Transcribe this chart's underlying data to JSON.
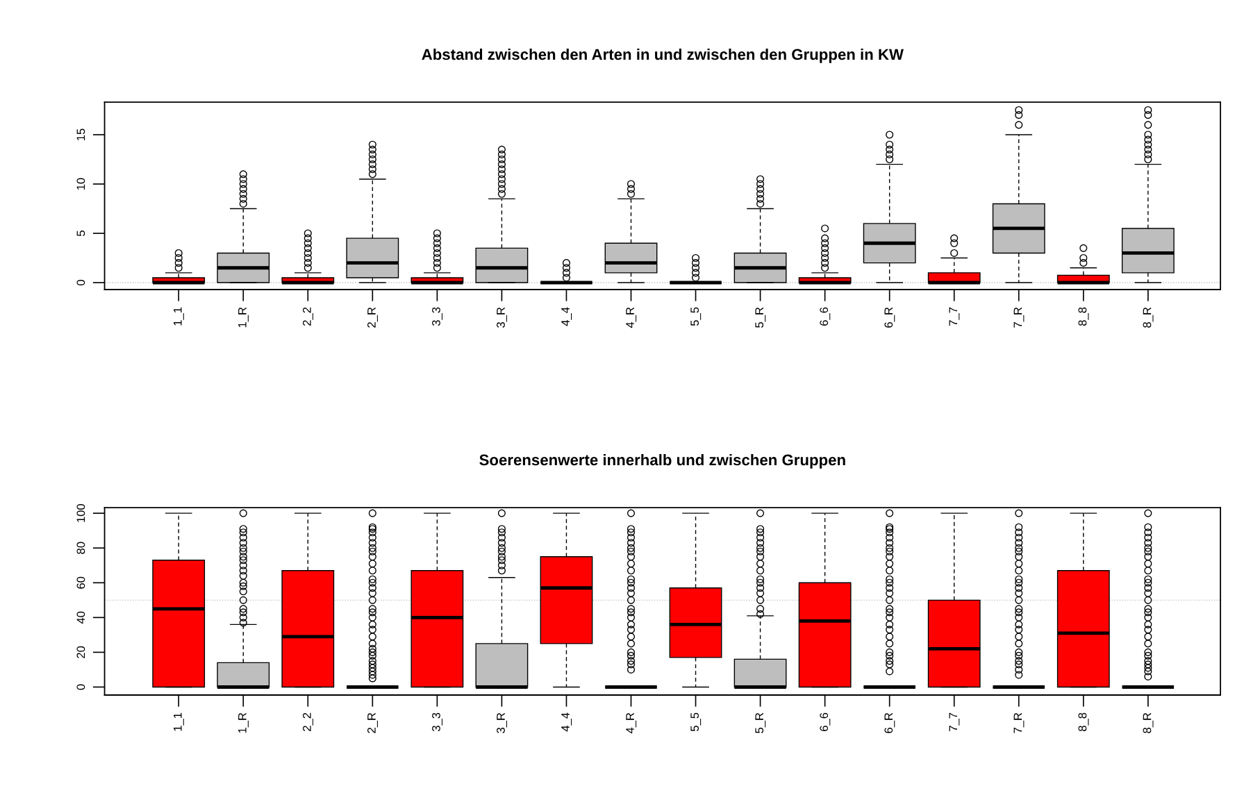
{
  "chart_data": [
    {
      "type": "box",
      "title": "Abstand zwischen den Arten in und zwischen den Gruppen in KW",
      "categories": [
        "1_1",
        "1_R",
        "2_2",
        "2_R",
        "3_3",
        "3_R",
        "4_4",
        "4_R",
        "5_5",
        "5_R",
        "6_6",
        "6_R",
        "7_7",
        "7_R",
        "8_8",
        "8_R"
      ],
      "colors": [
        "#ff0000",
        "#bebebe",
        "#ff0000",
        "#bebebe",
        "#ff0000",
        "#bebebe",
        null,
        "#bebebe",
        null,
        "#bebebe",
        "#ff0000",
        "#bebebe",
        "#ff0000",
        "#bebebe",
        "#ff0000",
        "#bebebe"
      ],
      "boxes": [
        {
          "low": 0,
          "q1": 0,
          "median": 0,
          "q3": 0.5,
          "high": 1,
          "outliers": [
            1.5,
            2,
            2.5,
            3
          ]
        },
        {
          "low": 0,
          "q1": 0,
          "median": 1.5,
          "q3": 3,
          "high": 7.5,
          "outliers": [
            8,
            8.5,
            9,
            9.5,
            10,
            10.5,
            11
          ]
        },
        {
          "low": 0,
          "q1": 0,
          "median": 0,
          "q3": 0.5,
          "high": 1,
          "outliers": [
            1.5,
            2,
            2.5,
            3,
            3.5,
            4,
            4.5,
            5
          ]
        },
        {
          "low": 0,
          "q1": 0.5,
          "median": 2,
          "q3": 4.5,
          "high": 10.5,
          "outliers": [
            11,
            11.5,
            12,
            12.5,
            13,
            13.5,
            14
          ]
        },
        {
          "low": 0,
          "q1": 0,
          "median": 0,
          "q3": 0.5,
          "high": 1,
          "outliers": [
            1.5,
            2,
            2.5,
            3,
            3.5,
            4,
            4.5,
            5
          ]
        },
        {
          "low": 0,
          "q1": 0,
          "median": 1.5,
          "q3": 3.5,
          "high": 8.5,
          "outliers": [
            9,
            9.5,
            10,
            10.5,
            11,
            11.5,
            12,
            12.5,
            13,
            13.5
          ]
        },
        {
          "low": 0,
          "q1": 0,
          "median": 0,
          "q3": 0,
          "high": 0,
          "outliers": [
            0.5,
            1,
            1.5,
            2
          ]
        },
        {
          "low": 0,
          "q1": 1,
          "median": 2,
          "q3": 4,
          "high": 8.5,
          "outliers": [
            9,
            9.5,
            10
          ]
        },
        {
          "low": 0,
          "q1": 0,
          "median": 0,
          "q3": 0,
          "high": 0,
          "outliers": [
            0.5,
            1,
            1.5,
            2,
            2.5
          ]
        },
        {
          "low": 0,
          "q1": 0,
          "median": 1.5,
          "q3": 3,
          "high": 7.5,
          "outliers": [
            8,
            8.5,
            9,
            9.5,
            10,
            10.5
          ]
        },
        {
          "low": 0,
          "q1": 0,
          "median": 0,
          "q3": 0.5,
          "high": 1,
          "outliers": [
            1.5,
            2,
            2.5,
            3,
            3.5,
            4,
            4.5,
            5.5
          ]
        },
        {
          "low": 0,
          "q1": 2,
          "median": 4,
          "q3": 6,
          "high": 12,
          "outliers": [
            12.5,
            13,
            13.5,
            14,
            15
          ]
        },
        {
          "low": 0,
          "q1": 0,
          "median": 0,
          "q3": 1,
          "high": 2.5,
          "outliers": [
            3,
            4,
            4.5
          ]
        },
        {
          "low": 0,
          "q1": 3,
          "median": 5.5,
          "q3": 8,
          "high": 15,
          "outliers": [
            16,
            17,
            17.5
          ]
        },
        {
          "low": 0,
          "q1": 0,
          "median": 0,
          "q3": 0.75,
          "high": 1.5,
          "outliers": [
            2,
            2.5,
            3.5
          ]
        },
        {
          "low": 0,
          "q1": 1,
          "median": 3,
          "q3": 5.5,
          "high": 12,
          "outliers": [
            12.5,
            13,
            13.5,
            14,
            14.5,
            15,
            16,
            17,
            17.5
          ]
        }
      ],
      "ylim": [
        -0.7,
        18.3
      ],
      "yticks": [
        0,
        5,
        10,
        15
      ],
      "ref_lines": [
        {
          "axis": "y",
          "value": 0,
          "color": "#bebebe",
          "line_style": "dotted"
        }
      ]
    },
    {
      "type": "box",
      "title": "Soerensenwerte innerhalb und zwischen Gruppen",
      "categories": [
        "1_1",
        "1_R",
        "2_2",
        "2_R",
        "3_3",
        "3_R",
        "4_4",
        "4_R",
        "5_5",
        "5_R",
        "6_6",
        "6_R",
        "7_7",
        "7_R",
        "8_8",
        "8_R"
      ],
      "colors": [
        "#ff0000",
        "#bebebe",
        "#ff0000",
        null,
        "#ff0000",
        "#bebebe",
        "#ff0000",
        null,
        "#ff0000",
        "#bebebe",
        "#ff0000",
        null,
        "#ff0000",
        null,
        "#ff0000",
        null
      ],
      "boxes": [
        {
          "low": 0,
          "q1": 0,
          "median": 45,
          "q3": 73,
          "high": 100
        },
        {
          "low": 0,
          "q1": 0,
          "median": 0,
          "q3": 14,
          "high": 36,
          "outliers": [
            37,
            40,
            43,
            45,
            50,
            55,
            58,
            60,
            64,
            67,
            70,
            73,
            75,
            78,
            80,
            83,
            86,
            89,
            91,
            100
          ]
        },
        {
          "low": 0,
          "q1": 0,
          "median": 29,
          "q3": 67,
          "high": 100
        },
        {
          "low": 0,
          "q1": 0,
          "median": 0,
          "q3": 0,
          "high": 0,
          "outliers": [
            5,
            7,
            9,
            11,
            13,
            15,
            18,
            20,
            22,
            25,
            29,
            33,
            36,
            40,
            43,
            45,
            50,
            54,
            57,
            60,
            62,
            67,
            71,
            75,
            78,
            80,
            83,
            86,
            89,
            91,
            92,
            100
          ]
        },
        {
          "low": 0,
          "q1": 0,
          "median": 40,
          "q3": 67,
          "high": 100
        },
        {
          "low": 0,
          "q1": 0,
          "median": 0,
          "q3": 25,
          "high": 63,
          "outliers": [
            67,
            70,
            73,
            75,
            78,
            80,
            83,
            86,
            89,
            91,
            100
          ]
        },
        {
          "low": 0,
          "q1": 25,
          "median": 57,
          "q3": 75,
          "high": 100
        },
        {
          "low": 0,
          "q1": 0,
          "median": 0,
          "q3": 0,
          "high": 0,
          "outliers": [
            10,
            13,
            15,
            18,
            20,
            25,
            29,
            33,
            36,
            40,
            43,
            45,
            50,
            54,
            57,
            60,
            62,
            67,
            71,
            75,
            78,
            80,
            83,
            86,
            89,
            91,
            100
          ]
        },
        {
          "low": 0,
          "q1": 17,
          "median": 36,
          "q3": 57,
          "high": 100
        },
        {
          "low": 0,
          "q1": 0,
          "median": 0,
          "q3": 16,
          "high": 41,
          "outliers": [
            42,
            45,
            50,
            54,
            57,
            60,
            62,
            67,
            71,
            75,
            78,
            80,
            83,
            86,
            89,
            91,
            100
          ]
        },
        {
          "low": 0,
          "q1": 0,
          "median": 38,
          "q3": 60,
          "high": 100
        },
        {
          "low": 0,
          "q1": 0,
          "median": 0,
          "q3": 0,
          "high": 0,
          "outliers": [
            9,
            13,
            15,
            18,
            20,
            25,
            29,
            33,
            36,
            40,
            43,
            45,
            50,
            54,
            57,
            60,
            62,
            67,
            71,
            75,
            78,
            80,
            83,
            86,
            89,
            91,
            92,
            100
          ]
        },
        {
          "low": 0,
          "q1": 0,
          "median": 22,
          "q3": 50,
          "high": 100
        },
        {
          "low": 0,
          "q1": 0,
          "median": 0,
          "q3": 0,
          "high": 0,
          "outliers": [
            7,
            10,
            13,
            15,
            18,
            20,
            25,
            29,
            33,
            36,
            40,
            43,
            45,
            50,
            54,
            57,
            60,
            62,
            67,
            71,
            75,
            78,
            80,
            83,
            86,
            89,
            92,
            100
          ]
        },
        {
          "low": 0,
          "q1": 0,
          "median": 31,
          "q3": 67,
          "high": 100
        },
        {
          "low": 0,
          "q1": 0,
          "median": 0,
          "q3": 0,
          "high": 0,
          "outliers": [
            6,
            9,
            11,
            13,
            15,
            18,
            20,
            25,
            29,
            33,
            36,
            40,
            43,
            45,
            50,
            54,
            57,
            60,
            62,
            67,
            71,
            75,
            78,
            80,
            83,
            86,
            89,
            92,
            100
          ]
        }
      ],
      "ylim": [
        -4.6,
        103.2
      ],
      "yticks": [
        0,
        20,
        40,
        60,
        80,
        100
      ],
      "ref_lines": [
        {
          "axis": "y",
          "value": 50,
          "color": "#bebebe",
          "line_style": "dotted"
        }
      ]
    }
  ]
}
